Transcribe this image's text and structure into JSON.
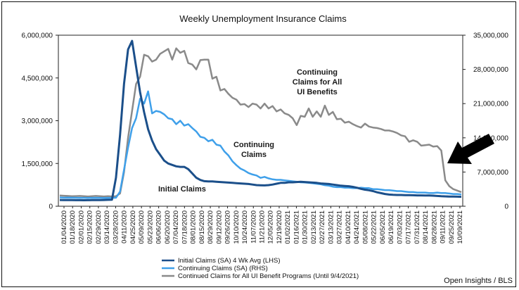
{
  "chart_data": {
    "type": "line",
    "title": "Weekly Unemployment Insurance Claims",
    "source": "Open Insights / BLS",
    "y_left": {
      "ylim": [
        0,
        6000000
      ],
      "ticks": [
        "0",
        "1,500,000",
        "3,000,000",
        "4,500,000",
        "6,000,000"
      ],
      "tick_values": [
        0,
        1500000,
        3000000,
        4500000,
        6000000
      ]
    },
    "y_right": {
      "ylim": [
        0,
        35000000
      ],
      "ticks": [
        "0",
        "7,000,000",
        "14,000,000",
        "21,000,000",
        "28,000,000",
        "35,000,000"
      ],
      "tick_values": [
        0,
        7000000,
        14000000,
        21000000,
        28000000,
        35000000
      ]
    },
    "x_tick_labels": [
      "01/04/2020",
      "01/18/2020",
      "02/01/2020",
      "02/15/2020",
      "02/29/2020",
      "03/14/2020",
      "03/28/2020",
      "04/11/2020",
      "04/25/2020",
      "05/09/2020",
      "05/23/2020",
      "06/06/2020",
      "06/20/2020",
      "07/04/2020",
      "07/18/2020",
      "08/01/2020",
      "08/15/2020",
      "08/29/2020",
      "09/12/2020",
      "09/26/2020",
      "10/10/2020",
      "10/24/2020",
      "11/07/2020",
      "11/21/2020",
      "12/05/2020",
      "12/19/2020",
      "01/02/2021",
      "01/16/2021",
      "01/30/2021",
      "02/13/2021",
      "02/27/2021",
      "03/13/2021",
      "03/27/2021",
      "04/10/2021",
      "04/24/2021",
      "05/08/2021",
      "05/22/2021",
      "06/05/2021",
      "06/19/2021",
      "07/03/2021",
      "07/17/2021",
      "07/31/2021",
      "08/14/2021",
      "08/28/2021",
      "09/11/2021",
      "09/25/2021",
      "10/09/2021"
    ],
    "series": [
      {
        "name": "Initial Claims (SA) 4 Wk Avg (LHS)",
        "axis": "left",
        "color": "#1b4f8a",
        "values": [
          220000,
          218000,
          216000,
          214000,
          212000,
          212000,
          210000,
          212000,
          214000,
          216000,
          218000,
          220000,
          225000,
          230000,
          1000000,
          2500000,
          4300000,
          5500000,
          5800000,
          4900000,
          4000000,
          3300000,
          2700000,
          2300000,
          2000000,
          1800000,
          1600000,
          1500000,
          1450000,
          1400000,
          1380000,
          1380000,
          1300000,
          1150000,
          1000000,
          920000,
          880000,
          870000,
          870000,
          860000,
          850000,
          840000,
          830000,
          820000,
          810000,
          800000,
          790000,
          780000,
          760000,
          740000,
          735000,
          730000,
          740000,
          760000,
          790000,
          820000,
          820000,
          840000,
          840000,
          850000,
          860000,
          850000,
          840000,
          830000,
          820000,
          800000,
          790000,
          780000,
          760000,
          740000,
          720000,
          710000,
          700000,
          680000,
          650000,
          610000,
          580000,
          560000,
          530000,
          490000,
          460000,
          430000,
          410000,
          400000,
          395000,
          395000,
          390000,
          390000,
          385000,
          380000,
          380000,
          375000,
          375000,
          370000,
          360000,
          350000,
          345000,
          340000,
          340000,
          335000,
          330000
        ]
      },
      {
        "name": "Continuing Claims (SA) (RHS)",
        "axis": "right",
        "color": "#3fa0ea",
        "values": [
          1800000,
          1750000,
          1760000,
          1740000,
          1730000,
          1720000,
          1710000,
          1700000,
          1720000,
          1730000,
          1710000,
          1700000,
          1710000,
          1720000,
          1750000,
          3000000,
          7500000,
          12000000,
          16000000,
          18000000,
          22000000,
          21000000,
          23500000,
          19000000,
          19500000,
          19300000,
          18800000,
          18000000,
          17800000,
          16800000,
          17500000,
          16500000,
          16800000,
          16000000,
          15300000,
          14200000,
          14000000,
          13300000,
          13600000,
          12600000,
          12400000,
          11200000,
          10400000,
          9200000,
          8400000,
          7700000,
          7300000,
          6800000,
          6500000,
          6300000,
          5800000,
          6000000,
          5700000,
          5500000,
          5400000,
          5400000,
          5300000,
          5200000,
          5100000,
          5000000,
          4900000,
          4850000,
          4800000,
          4700000,
          4600000,
          4500000,
          4300000,
          4200000,
          4000000,
          3900000,
          3900000,
          3800000,
          3800000,
          3700000,
          3700000,
          3800000,
          3700000,
          3700000,
          3500000,
          3500000,
          3400000,
          3300000,
          3300000,
          3200000,
          3100000,
          3100000,
          3000000,
          2900000,
          2900000,
          2800000,
          2800000,
          2800000,
          2700000,
          2700000,
          2800000,
          2700000,
          2700000,
          2600000,
          2500000,
          2500000,
          2400000
        ]
      },
      {
        "name": "Continued Claims for All UI Benefit Programs (Until 9/4/2021)",
        "axis": "right",
        "color": "#8a8a8a",
        "values": [
          2200000,
          2150000,
          2100000,
          2050000,
          2080000,
          2100000,
          2050000,
          2000000,
          2050000,
          2100000,
          2050000,
          2000000,
          2050000,
          2000000,
          2050000,
          2600000,
          7000000,
          14000000,
          19500000,
          25000000,
          26500000,
          31000000,
          30700000,
          29600000,
          30000000,
          31200000,
          31700000,
          32200000,
          30000000,
          32300000,
          31400000,
          31800000,
          29300000,
          29000000,
          28000000,
          29900000,
          30000000,
          30000000,
          26100000,
          26500000,
          23700000,
          24000000,
          23000000,
          22200000,
          21800000,
          20800000,
          20900000,
          20300000,
          21000000,
          20800000,
          20000000,
          21000000,
          20000000,
          20500000,
          19400000,
          19800000,
          19000000,
          18700000,
          18000000,
          16600000,
          18500000,
          18300000,
          20000000,
          18300000,
          19400000,
          18300000,
          20600000,
          18700000,
          19300000,
          17800000,
          17900000,
          17100000,
          17300000,
          16800000,
          16400000,
          16100000,
          16900000,
          16300000,
          16100000,
          16000000,
          15800000,
          15500000,
          15500000,
          15300000,
          15000000,
          14500000,
          14300000,
          13200000,
          13500000,
          13200000,
          12400000,
          12500000,
          12600000,
          12200000,
          12300000,
          11400000,
          5300000,
          4100000,
          3500000,
          3200000,
          2900000
        ]
      }
    ],
    "annotations": [
      {
        "text_lines": [
          "Initial Claims"
        ]
      },
      {
        "text_lines": [
          "Continuing",
          "Claims"
        ]
      },
      {
        "text_lines": [
          "Continuing",
          "Claims for All",
          "UI Benefits"
        ]
      }
    ],
    "legend_position": "bottom-left",
    "grid": false
  }
}
